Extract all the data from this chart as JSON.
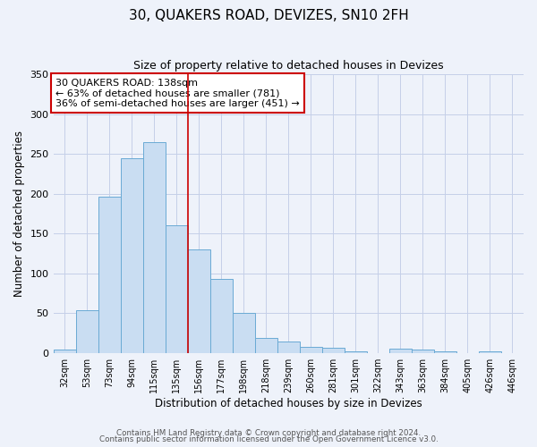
{
  "title": "30, QUAKERS ROAD, DEVIZES, SN10 2FH",
  "subtitle": "Size of property relative to detached houses in Devizes",
  "xlabel": "Distribution of detached houses by size in Devizes",
  "ylabel": "Number of detached properties",
  "bar_labels": [
    "32sqm",
    "53sqm",
    "73sqm",
    "94sqm",
    "115sqm",
    "135sqm",
    "156sqm",
    "177sqm",
    "198sqm",
    "218sqm",
    "239sqm",
    "260sqm",
    "281sqm",
    "301sqm",
    "322sqm",
    "343sqm",
    "363sqm",
    "384sqm",
    "405sqm",
    "426sqm",
    "446sqm"
  ],
  "bar_values": [
    4,
    54,
    196,
    245,
    265,
    160,
    130,
    93,
    50,
    19,
    14,
    8,
    6,
    2,
    0,
    5,
    4,
    2,
    0,
    2,
    0
  ],
  "bar_color": "#c9ddf2",
  "bar_edge_color": "#6aaad4",
  "vline_x_idx": 5,
  "vline_color": "#cc0000",
  "annotation_title": "30 QUAKERS ROAD: 138sqm",
  "annotation_line1": "← 63% of detached houses are smaller (781)",
  "annotation_line2": "36% of semi-detached houses are larger (451) →",
  "annotation_box_edge": "#cc0000",
  "ylim": [
    0,
    350
  ],
  "yticks": [
    0,
    50,
    100,
    150,
    200,
    250,
    300,
    350
  ],
  "footer1": "Contains HM Land Registry data © Crown copyright and database right 2024.",
  "footer2": "Contains public sector information licensed under the Open Government Licence v3.0.",
  "bg_color": "#eef2fa",
  "grid_color": "#c5cfe8"
}
